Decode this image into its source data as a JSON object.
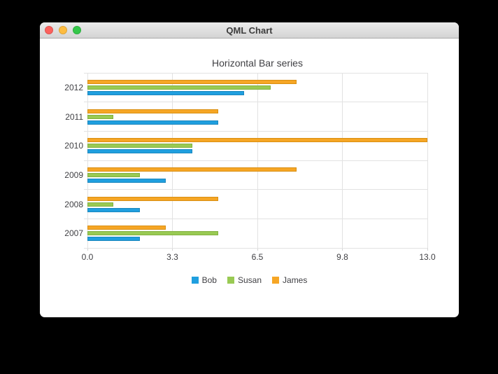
{
  "window": {
    "title": "QML Chart",
    "traffic_lights": {
      "close_color": "#fc615d",
      "minimize_color": "#fdbc40",
      "zoom_color": "#34c749"
    }
  },
  "chart_data": {
    "type": "bar",
    "orientation": "horizontal",
    "title": "Horizontal Bar series",
    "categories": [
      "2007",
      "2008",
      "2009",
      "2010",
      "2011",
      "2012"
    ],
    "series": [
      {
        "name": "Bob",
        "color": "#209fdf",
        "border_color": "#1a87be",
        "values": [
          2,
          2,
          3,
          4,
          5,
          6
        ]
      },
      {
        "name": "Susan",
        "color": "#99ca53",
        "border_color": "#82b140",
        "values": [
          5,
          1,
          2,
          4,
          1,
          7
        ]
      },
      {
        "name": "James",
        "color": "#f6a625",
        "border_color": "#d98f12",
        "values": [
          3,
          5,
          8,
          13,
          5,
          8
        ]
      }
    ],
    "xlim": [
      0,
      13
    ],
    "x_ticks": [
      0,
      3.25,
      6.5,
      9.75,
      13
    ],
    "x_tick_labels": [
      "0.0",
      "3.3",
      "6.5",
      "9.8",
      "13.0"
    ],
    "xlabel": "",
    "ylabel": "",
    "grid": true,
    "legend_position": "bottom"
  }
}
